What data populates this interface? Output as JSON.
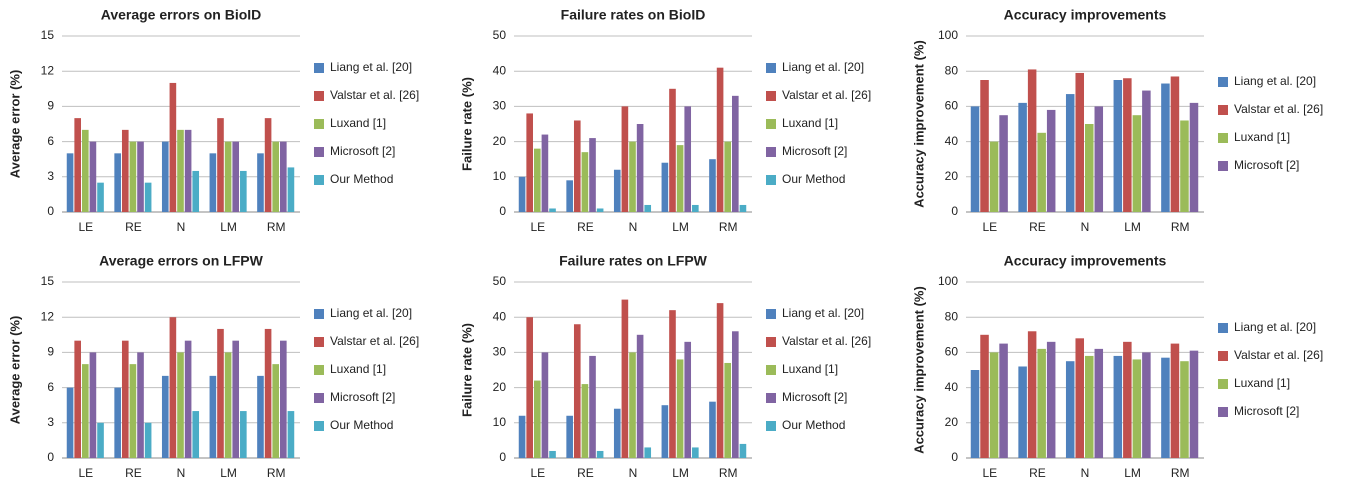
{
  "chart_data": [
    {
      "type": "bar",
      "title": "Average errors on BioID",
      "ylabel": "Average error (%)",
      "categories": [
        "LE",
        "RE",
        "N",
        "LM",
        "RM"
      ],
      "series": [
        {
          "name": "Liang et al. [20]",
          "color": "#4f81bd",
          "values": [
            5,
            5,
            6,
            5,
            5
          ]
        },
        {
          "name": "Valstar et al. [26]",
          "color": "#c0504d",
          "values": [
            8,
            7,
            11,
            8,
            8
          ]
        },
        {
          "name": "Luxand [1]",
          "color": "#9bbb59",
          "values": [
            7,
            6,
            7,
            6,
            6
          ]
        },
        {
          "name": "Microsoft [2]",
          "color": "#8064a2",
          "values": [
            6,
            6,
            7,
            6,
            6
          ]
        },
        {
          "name": "Our Method",
          "color": "#4bacc6",
          "values": [
            2.5,
            2.5,
            3.5,
            3.5,
            3.8
          ]
        }
      ],
      "ylim": [
        0,
        15
      ],
      "yticks": [
        0,
        3,
        6,
        9,
        12,
        15
      ],
      "grid": true,
      "legend": "right"
    },
    {
      "type": "bar",
      "title": "Failure rates on BioID",
      "ylabel": "Failure rate (%)",
      "categories": [
        "LE",
        "RE",
        "N",
        "LM",
        "RM"
      ],
      "series": [
        {
          "name": "Liang et al. [20]",
          "color": "#4f81bd",
          "values": [
            10,
            9,
            12,
            14,
            15
          ]
        },
        {
          "name": "Valstar et al. [26]",
          "color": "#c0504d",
          "values": [
            28,
            26,
            30,
            35,
            41
          ]
        },
        {
          "name": "Luxand [1]",
          "color": "#9bbb59",
          "values": [
            18,
            17,
            20,
            19,
            20
          ]
        },
        {
          "name": "Microsoft [2]",
          "color": "#8064a2",
          "values": [
            22,
            21,
            25,
            30,
            33
          ]
        },
        {
          "name": "Our Method",
          "color": "#4bacc6",
          "values": [
            1,
            1,
            2,
            2,
            2
          ]
        }
      ],
      "ylim": [
        0,
        50
      ],
      "yticks": [
        0,
        10,
        20,
        30,
        40,
        50
      ],
      "grid": true,
      "legend": "right"
    },
    {
      "type": "bar",
      "title": "Accuracy improvements",
      "ylabel": "Accuracy improvement (%)",
      "categories": [
        "LE",
        "RE",
        "N",
        "LM",
        "RM"
      ],
      "series": [
        {
          "name": "Liang et al. [20]",
          "color": "#4f81bd",
          "values": [
            60,
            62,
            67,
            75,
            73
          ]
        },
        {
          "name": "Valstar et al. [26]",
          "color": "#c0504d",
          "values": [
            75,
            81,
            79,
            76,
            77
          ]
        },
        {
          "name": "Luxand [1]",
          "color": "#9bbb59",
          "values": [
            40,
            45,
            50,
            55,
            52
          ]
        },
        {
          "name": "Microsoft [2]",
          "color": "#8064a2",
          "values": [
            55,
            58,
            60,
            69,
            62
          ]
        }
      ],
      "ylim": [
        0,
        100
      ],
      "yticks": [
        0,
        20,
        40,
        60,
        80,
        100
      ],
      "grid": true,
      "legend": "right"
    },
    {
      "type": "bar",
      "title": "Average errors on LFPW",
      "ylabel": "Average error (%)",
      "categories": [
        "LE",
        "RE",
        "N",
        "LM",
        "RM"
      ],
      "series": [
        {
          "name": "Liang et al. [20]",
          "color": "#4f81bd",
          "values": [
            6,
            6,
            7,
            7,
            7
          ]
        },
        {
          "name": "Valstar et al. [26]",
          "color": "#c0504d",
          "values": [
            10,
            10,
            12,
            11,
            11
          ]
        },
        {
          "name": "Luxand [1]",
          "color": "#9bbb59",
          "values": [
            8,
            8,
            9,
            9,
            8
          ]
        },
        {
          "name": "Microsoft [2]",
          "color": "#8064a2",
          "values": [
            9,
            9,
            10,
            10,
            10
          ]
        },
        {
          "name": "Our Method",
          "color": "#4bacc6",
          "values": [
            3,
            3,
            4,
            4,
            4
          ]
        }
      ],
      "ylim": [
        0,
        15
      ],
      "yticks": [
        0,
        3,
        6,
        9,
        12,
        15
      ],
      "grid": true,
      "legend": "right"
    },
    {
      "type": "bar",
      "title": "Failure rates on LFPW",
      "ylabel": "Failure rate (%)",
      "categories": [
        "LE",
        "RE",
        "N",
        "LM",
        "RM"
      ],
      "series": [
        {
          "name": "Liang et al. [20]",
          "color": "#4f81bd",
          "values": [
            12,
            12,
            14,
            15,
            16
          ]
        },
        {
          "name": "Valstar et al. [26]",
          "color": "#c0504d",
          "values": [
            40,
            38,
            45,
            42,
            44
          ]
        },
        {
          "name": "Luxand [1]",
          "color": "#9bbb59",
          "values": [
            22,
            21,
            30,
            28,
            27
          ]
        },
        {
          "name": "Microsoft [2]",
          "color": "#8064a2",
          "values": [
            30,
            29,
            35,
            33,
            36
          ]
        },
        {
          "name": "Our Method",
          "color": "#4bacc6",
          "values": [
            2,
            2,
            3,
            3,
            4
          ]
        }
      ],
      "ylim": [
        0,
        50
      ],
      "yticks": [
        0,
        10,
        20,
        30,
        40,
        50
      ],
      "grid": true,
      "legend": "right"
    },
    {
      "type": "bar",
      "title": "Accuracy improvements",
      "ylabel": "Accuracy improvement (%)",
      "categories": [
        "LE",
        "RE",
        "N",
        "LM",
        "RM"
      ],
      "series": [
        {
          "name": "Liang et al. [20]",
          "color": "#4f81bd",
          "values": [
            50,
            52,
            55,
            58,
            57
          ]
        },
        {
          "name": "Valstar et al. [26]",
          "color": "#c0504d",
          "values": [
            70,
            72,
            68,
            66,
            65
          ]
        },
        {
          "name": "Luxand [1]",
          "color": "#9bbb59",
          "values": [
            60,
            62,
            58,
            56,
            55
          ]
        },
        {
          "name": "Microsoft [2]",
          "color": "#8064a2",
          "values": [
            65,
            66,
            62,
            60,
            61
          ]
        }
      ],
      "ylim": [
        0,
        100
      ],
      "yticks": [
        0,
        20,
        40,
        60,
        80,
        100
      ],
      "grid": true,
      "legend": "right"
    }
  ]
}
